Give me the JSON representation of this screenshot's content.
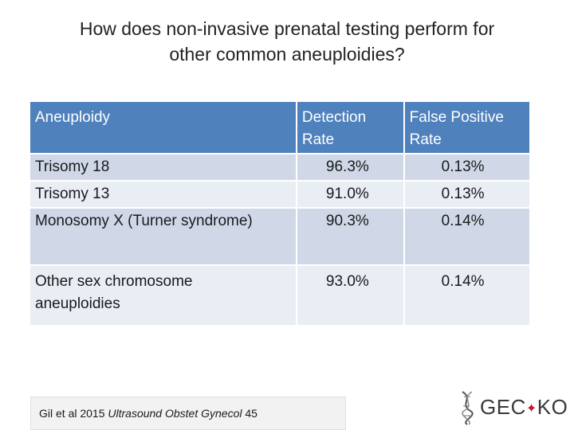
{
  "title": {
    "line1": "How does non-invasive prenatal testing perform for",
    "line2": "other common aneuploidies?"
  },
  "table": {
    "headers": {
      "aneuploidy": "Aneuploidy",
      "detection_line1": "Detection",
      "detection_line2": "Rate",
      "fp_line1": "False Positive",
      "fp_line2": "Rate"
    },
    "rows": [
      {
        "name": "Trisomy 18",
        "detection": "96.3%",
        "fp": "0.13%"
      },
      {
        "name": "Trisomy 13",
        "detection": "91.0%",
        "fp": "0.13%"
      },
      {
        "name": "Monosomy X (Turner syndrome)",
        "detection": "90.3%",
        "fp": "0.14%"
      },
      {
        "name_line1": "Other sex chromosome",
        "name_line2": "aneuploidies",
        "detection": "93.0%",
        "fp": "0.14%"
      }
    ]
  },
  "citation": {
    "prefix": "Gil et al 2015 ",
    "journal": "Ultrasound Obstet Gynecol",
    "suffix": " 45"
  },
  "logo": {
    "text_left": "GEC",
    "text_right": "KO"
  },
  "colors": {
    "header_bg": "#4f81bd",
    "row_light": "#e9edf4",
    "row_mid": "#d0d8e8",
    "maple_leaf": "#c8102e"
  }
}
